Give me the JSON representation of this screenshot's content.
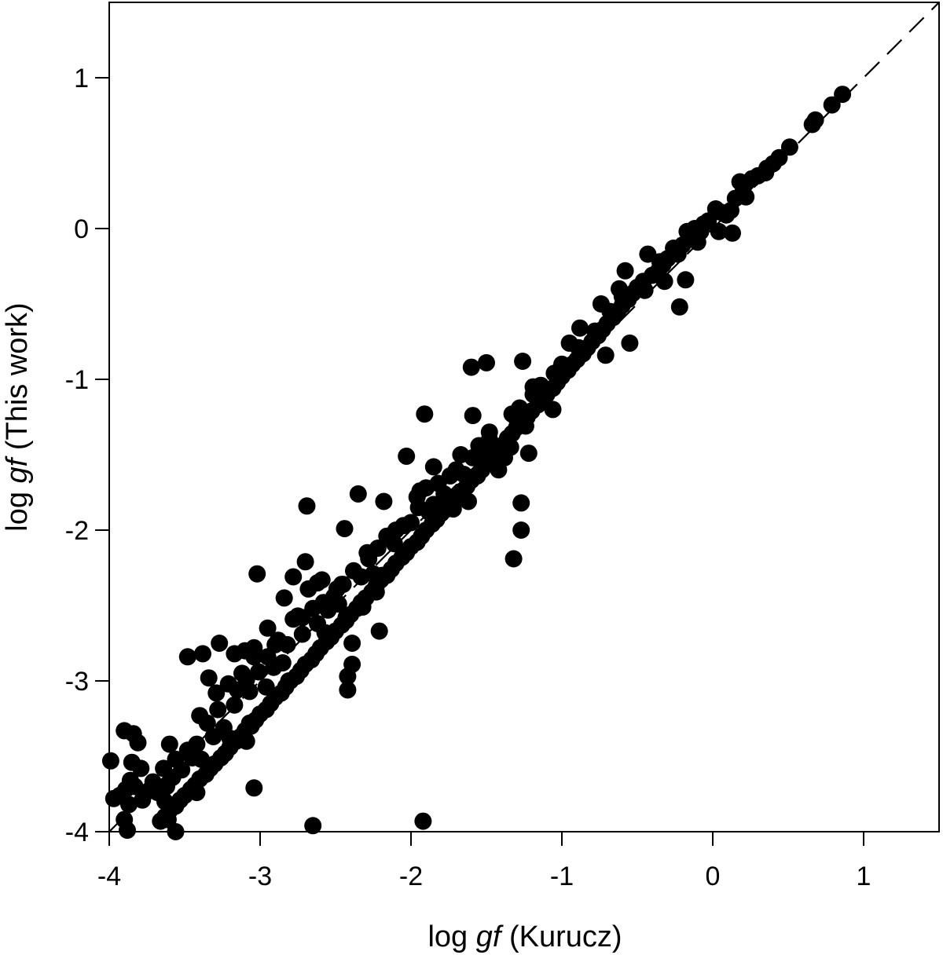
{
  "chart_data": {
    "type": "scatter",
    "title": "",
    "xlabel": {
      "prefix": "log ",
      "italic": "gf",
      "suffix": " (Kurucz)"
    },
    "ylabel": {
      "prefix": "log ",
      "italic": "gf",
      "suffix": " (This work)"
    },
    "xlim": [
      -4,
      1.5
    ],
    "ylim": [
      -4,
      1.5
    ],
    "xticks": [
      -4,
      -3,
      -2,
      -1,
      0,
      1
    ],
    "yticks": [
      -4,
      -3,
      -2,
      -1,
      0,
      1
    ],
    "xtick_labels": [
      "-4",
      "-3",
      "-2",
      "-1",
      "0",
      "1"
    ],
    "ytick_labels": [
      "-4",
      "-3",
      "-2",
      "-1",
      "0",
      "1"
    ],
    "reference_line": {
      "style": "dashed",
      "slope": 1,
      "intercept": 0
    },
    "grid": false,
    "marker_color": "#000000",
    "series": [
      {
        "points": [
          [
            0.86,
            0.89
          ],
          [
            0.79,
            0.82
          ],
          [
            0.68,
            0.72
          ],
          [
            0.66,
            0.69
          ],
          [
            0.51,
            0.54
          ],
          [
            0.44,
            0.47
          ],
          [
            0.4,
            0.43
          ],
          [
            0.36,
            0.4
          ],
          [
            0.3,
            0.35
          ],
          [
            0.26,
            0.33
          ],
          [
            0.22,
            0.3
          ],
          [
            0.2,
            0.24
          ],
          [
            0.18,
            0.31
          ],
          [
            0.15,
            0.2
          ],
          [
            0.12,
            0.12
          ],
          [
            0.09,
            0.09
          ],
          [
            0.05,
            0.11
          ],
          [
            0.02,
            0.13
          ],
          [
            -0.03,
            0.05
          ],
          [
            -0.06,
            0.03
          ],
          [
            -0.08,
            -0.02
          ],
          [
            -0.12,
            0.0
          ],
          [
            -0.15,
            -0.06
          ],
          [
            -0.17,
            -0.02
          ],
          [
            -0.2,
            -0.11
          ],
          [
            -0.23,
            -0.17
          ],
          [
            -0.26,
            -0.13
          ],
          [
            -0.3,
            -0.2
          ],
          [
            -0.33,
            -0.24
          ],
          [
            -0.36,
            -0.28
          ],
          [
            -0.4,
            -0.31
          ],
          [
            -0.43,
            -0.17
          ],
          [
            -0.46,
            -0.35
          ],
          [
            -0.5,
            -0.39
          ],
          [
            -0.53,
            -0.43
          ],
          [
            -0.56,
            -0.47
          ],
          [
            -0.6,
            -0.51
          ],
          [
            -0.63,
            -0.55
          ],
          [
            -0.66,
            -0.59
          ],
          [
            -0.7,
            -0.63
          ],
          [
            -0.73,
            -0.67
          ],
          [
            -0.76,
            -0.71
          ],
          [
            -0.8,
            -0.75
          ],
          [
            -0.83,
            -0.79
          ],
          [
            -0.86,
            -0.83
          ],
          [
            -0.9,
            -0.87
          ],
          [
            -0.93,
            -0.9
          ],
          [
            -0.96,
            -0.94
          ],
          [
            -1.0,
            -0.98
          ],
          [
            -1.03,
            -1.02
          ],
          [
            -1.06,
            -1.06
          ],
          [
            -1.1,
            -1.1
          ],
          [
            -1.13,
            -1.14
          ],
          [
            -1.16,
            -1.17
          ],
          [
            -1.2,
            -1.21
          ],
          [
            -1.23,
            -1.25
          ],
          [
            -1.26,
            -1.28
          ],
          [
            -1.3,
            -1.32
          ],
          [
            -1.33,
            -1.36
          ],
          [
            -1.36,
            -1.4
          ],
          [
            -1.4,
            -1.44
          ],
          [
            -1.43,
            -1.48
          ],
          [
            -1.46,
            -1.52
          ],
          [
            -1.5,
            -1.56
          ],
          [
            -1.53,
            -1.6
          ],
          [
            -1.56,
            -1.64
          ],
          [
            -1.6,
            -1.67
          ],
          [
            -1.63,
            -1.71
          ],
          [
            -1.66,
            -1.74
          ],
          [
            -1.7,
            -1.78
          ],
          [
            -1.73,
            -1.82
          ],
          [
            -1.76,
            -1.86
          ],
          [
            -1.8,
            -1.89
          ],
          [
            -1.83,
            -1.93
          ],
          [
            -1.86,
            -1.96
          ],
          [
            -1.9,
            -2.0
          ],
          [
            -1.93,
            -2.04
          ],
          [
            -1.96,
            -2.08
          ],
          [
            -2.0,
            -2.11
          ],
          [
            -2.03,
            -2.15
          ],
          [
            -2.06,
            -2.18
          ],
          [
            -2.1,
            -2.22
          ],
          [
            -2.13,
            -2.26
          ],
          [
            -2.16,
            -2.3
          ],
          [
            -2.2,
            -2.33
          ],
          [
            -2.23,
            -2.37
          ],
          [
            -2.26,
            -2.41
          ],
          [
            -2.3,
            -2.45
          ],
          [
            -2.33,
            -2.48
          ],
          [
            -2.36,
            -2.52
          ],
          [
            -2.4,
            -2.56
          ],
          [
            -2.43,
            -2.6
          ],
          [
            -2.46,
            -2.63
          ],
          [
            -2.5,
            -2.67
          ],
          [
            -2.53,
            -2.71
          ],
          [
            -2.56,
            -2.74
          ],
          [
            -2.6,
            -2.78
          ],
          [
            -2.63,
            -2.82
          ],
          [
            -2.66,
            -2.86
          ],
          [
            -2.7,
            -2.89
          ],
          [
            -2.73,
            -2.93
          ],
          [
            -2.76,
            -2.97
          ],
          [
            -2.8,
            -3.0
          ],
          [
            -2.83,
            -3.04
          ],
          [
            -2.86,
            -3.08
          ],
          [
            -2.9,
            -3.11
          ],
          [
            -2.93,
            -3.15
          ],
          [
            -2.96,
            -3.19
          ],
          [
            -3.0,
            -3.22
          ],
          [
            -3.03,
            -3.26
          ],
          [
            -3.06,
            -3.3
          ],
          [
            -3.1,
            -3.33
          ],
          [
            -3.13,
            -3.37
          ],
          [
            -3.16,
            -3.4
          ],
          [
            -3.2,
            -3.44
          ],
          [
            -3.23,
            -3.48
          ],
          [
            -3.26,
            -3.51
          ],
          [
            -3.3,
            -3.55
          ],
          [
            -3.33,
            -3.58
          ],
          [
            -3.36,
            -3.62
          ],
          [
            -3.4,
            -3.65
          ],
          [
            -3.43,
            -3.69
          ],
          [
            -3.46,
            -3.72
          ],
          [
            -3.5,
            -3.76
          ],
          [
            -3.53,
            -3.79
          ],
          [
            -3.56,
            -3.83
          ],
          [
            -3.6,
            -3.86
          ],
          [
            -3.63,
            -3.9
          ],
          [
            -3.66,
            -3.93
          ],
          [
            -0.68,
            -0.55
          ],
          [
            -0.58,
            -0.28
          ],
          [
            -0.62,
            -0.4
          ],
          [
            -0.55,
            -0.76
          ],
          [
            -0.71,
            -0.84
          ],
          [
            -0.78,
            -0.68
          ],
          [
            -0.88,
            -0.66
          ],
          [
            -0.95,
            -0.76
          ],
          [
            -1.0,
            -0.9
          ],
          [
            -1.05,
            -0.96
          ],
          [
            -1.14,
            -1.04
          ],
          [
            -1.06,
            -1.2
          ],
          [
            -1.19,
            -1.1
          ],
          [
            -1.22,
            -1.49
          ],
          [
            -1.28,
            -1.19
          ],
          [
            -1.24,
            -1.31
          ],
          [
            -1.33,
            -1.23
          ],
          [
            -1.38,
            -1.52
          ],
          [
            -1.42,
            -1.6
          ],
          [
            -1.48,
            -1.35
          ],
          [
            -1.55,
            -1.44
          ],
          [
            -1.59,
            -1.24
          ],
          [
            -1.62,
            -1.81
          ],
          [
            -1.65,
            -1.63
          ],
          [
            -1.7,
            -1.6
          ],
          [
            -1.72,
            -1.86
          ],
          [
            -1.78,
            -1.76
          ],
          [
            -1.85,
            -1.83
          ],
          [
            -1.88,
            -1.88
          ],
          [
            -1.94,
            -1.74
          ],
          [
            -1.95,
            -1.85
          ],
          [
            -2.05,
            -1.97
          ],
          [
            -2.11,
            -2.09
          ],
          [
            -2.16,
            -2.04
          ],
          [
            -2.22,
            -2.12
          ],
          [
            -2.25,
            -2.29
          ],
          [
            -2.28,
            -2.19
          ],
          [
            -2.33,
            -2.31
          ],
          [
            -2.38,
            -2.27
          ],
          [
            -2.45,
            -2.36
          ],
          [
            -2.48,
            -2.49
          ],
          [
            -2.51,
            -2.44
          ],
          [
            -2.55,
            -2.53
          ],
          [
            -2.58,
            -2.48
          ],
          [
            -2.62,
            -2.62
          ],
          [
            -2.65,
            -2.52
          ],
          [
            -2.68,
            -2.39
          ],
          [
            -2.72,
            -2.69
          ],
          [
            -2.75,
            -2.57
          ],
          [
            -2.78,
            -2.59
          ],
          [
            -2.82,
            -2.76
          ],
          [
            -2.85,
            -2.88
          ],
          [
            -2.88,
            -2.73
          ],
          [
            -2.91,
            -2.91
          ],
          [
            -2.95,
            -2.84
          ],
          [
            -3.01,
            -2.94
          ],
          [
            -3.04,
            -2.84
          ],
          [
            -3.07,
            -3.07
          ],
          [
            -3.09,
            -2.99
          ],
          [
            -3.12,
            -2.95
          ],
          [
            -3.15,
            -3.06
          ],
          [
            -3.17,
            -3.16
          ],
          [
            -3.21,
            -3.02
          ],
          [
            -3.24,
            -3.31
          ],
          [
            -3.28,
            -3.19
          ],
          [
            -3.31,
            -3.37
          ],
          [
            -3.35,
            -3.28
          ],
          [
            -3.39,
            -3.52
          ],
          [
            -3.42,
            -3.42
          ],
          [
            -3.45,
            -3.51
          ],
          [
            -3.48,
            -3.46
          ],
          [
            -3.52,
            -3.59
          ],
          [
            -3.56,
            -3.52
          ],
          [
            -3.58,
            -3.64
          ],
          [
            -3.62,
            -3.7
          ],
          [
            -3.64,
            -3.58
          ],
          [
            -3.68,
            -3.74
          ],
          [
            -3.71,
            -3.67
          ],
          [
            -3.74,
            -3.73
          ],
          [
            -3.78,
            -3.79
          ],
          [
            -3.83,
            -3.7
          ],
          [
            -3.86,
            -3.66
          ],
          [
            -3.89,
            -3.72
          ],
          [
            -3.93,
            -3.76
          ],
          [
            -3.97,
            -3.78
          ],
          [
            -3.87,
            -3.82
          ],
          [
            -3.9,
            -3.92
          ],
          [
            -3.99,
            -3.53
          ],
          [
            -3.9,
            -3.33
          ],
          [
            -3.84,
            -3.35
          ],
          [
            -3.81,
            -3.41
          ],
          [
            -3.79,
            -3.58
          ],
          [
            -3.85,
            -3.54
          ],
          [
            -3.6,
            -3.42
          ],
          [
            -3.42,
            -3.74
          ],
          [
            -3.63,
            -3.8
          ],
          [
            -3.61,
            -3.92
          ],
          [
            -3.56,
            -4.0
          ],
          [
            -3.88,
            -3.99
          ],
          [
            -3.4,
            -3.23
          ],
          [
            -3.29,
            -3.08
          ],
          [
            -3.34,
            -2.98
          ],
          [
            -3.48,
            -2.84
          ],
          [
            -3.38,
            -2.82
          ],
          [
            -3.27,
            -2.75
          ],
          [
            -3.17,
            -2.82
          ],
          [
            -3.1,
            -2.8
          ],
          [
            -3.04,
            -2.78
          ],
          [
            -3.02,
            -2.29
          ],
          [
            -2.95,
            -2.65
          ],
          [
            -2.9,
            -2.76
          ],
          [
            -2.84,
            -2.45
          ],
          [
            -2.78,
            -2.31
          ],
          [
            -2.7,
            -2.21
          ],
          [
            -2.69,
            -1.84
          ],
          [
            -2.59,
            -2.33
          ],
          [
            -2.46,
            -2.36
          ],
          [
            -2.43,
            -2.58
          ],
          [
            -2.42,
            -2.97
          ],
          [
            -2.42,
            -3.06
          ],
          [
            -2.39,
            -2.89
          ],
          [
            -2.39,
            -2.75
          ],
          [
            -2.44,
            -1.99
          ],
          [
            -2.35,
            -1.76
          ],
          [
            -2.23,
            -2.41
          ],
          [
            -2.21,
            -2.67
          ],
          [
            -2.18,
            -1.81
          ],
          [
            -2.03,
            -1.51
          ],
          [
            -1.96,
            -1.78
          ],
          [
            -1.85,
            -1.58
          ],
          [
            -1.9,
            -1.72
          ],
          [
            -1.74,
            -1.64
          ],
          [
            -1.59,
            -1.52
          ],
          [
            -1.52,
            -1.47
          ],
          [
            -1.6,
            -0.92
          ],
          [
            -1.5,
            -0.89
          ],
          [
            -1.26,
            -0.88
          ],
          [
            -1.27,
            -1.82
          ],
          [
            -1.27,
            -2.0
          ],
          [
            -1.32,
            -2.19
          ],
          [
            -1.34,
            -1.45
          ],
          [
            -1.19,
            -1.05
          ],
          [
            -1.36,
            -1.39
          ],
          [
            -1.91,
            -1.23
          ],
          [
            -1.92,
            -3.93
          ],
          [
            -2.65,
            -3.96
          ],
          [
            -3.04,
            -3.71
          ],
          [
            -3.2,
            -3.38
          ],
          [
            -3.09,
            -3.4
          ],
          [
            -3.07,
            -3.28
          ],
          [
            -2.96,
            -3.04
          ],
          [
            -2.81,
            -3.0
          ],
          [
            -2.72,
            -2.58
          ],
          [
            -2.62,
            -2.35
          ],
          [
            -2.57,
            -2.68
          ],
          [
            -2.49,
            -2.39
          ],
          [
            -2.32,
            -2.51
          ],
          [
            -2.29,
            -2.15
          ],
          [
            -2.19,
            -2.3
          ],
          [
            -2.1,
            -2.0
          ],
          [
            -2.0,
            -1.95
          ],
          [
            -1.82,
            -1.69
          ],
          [
            -1.67,
            -1.5
          ],
          [
            -1.48,
            -1.4
          ],
          [
            -1.3,
            -1.26
          ],
          [
            -1.15,
            -1.12
          ],
          [
            -0.89,
            -0.79
          ],
          [
            -0.74,
            -0.5
          ],
          [
            -0.6,
            -0.45
          ],
          [
            -0.45,
            -0.41
          ],
          [
            -0.35,
            -0.22
          ],
          [
            -0.32,
            -0.35
          ],
          [
            -0.22,
            -0.52
          ],
          [
            -0.18,
            -0.34
          ],
          [
            -0.1,
            -0.09
          ],
          [
            0.04,
            -0.02
          ],
          [
            0.13,
            -0.03
          ],
          [
            0.22,
            0.21
          ],
          [
            0.35,
            0.37
          ]
        ]
      }
    ]
  }
}
